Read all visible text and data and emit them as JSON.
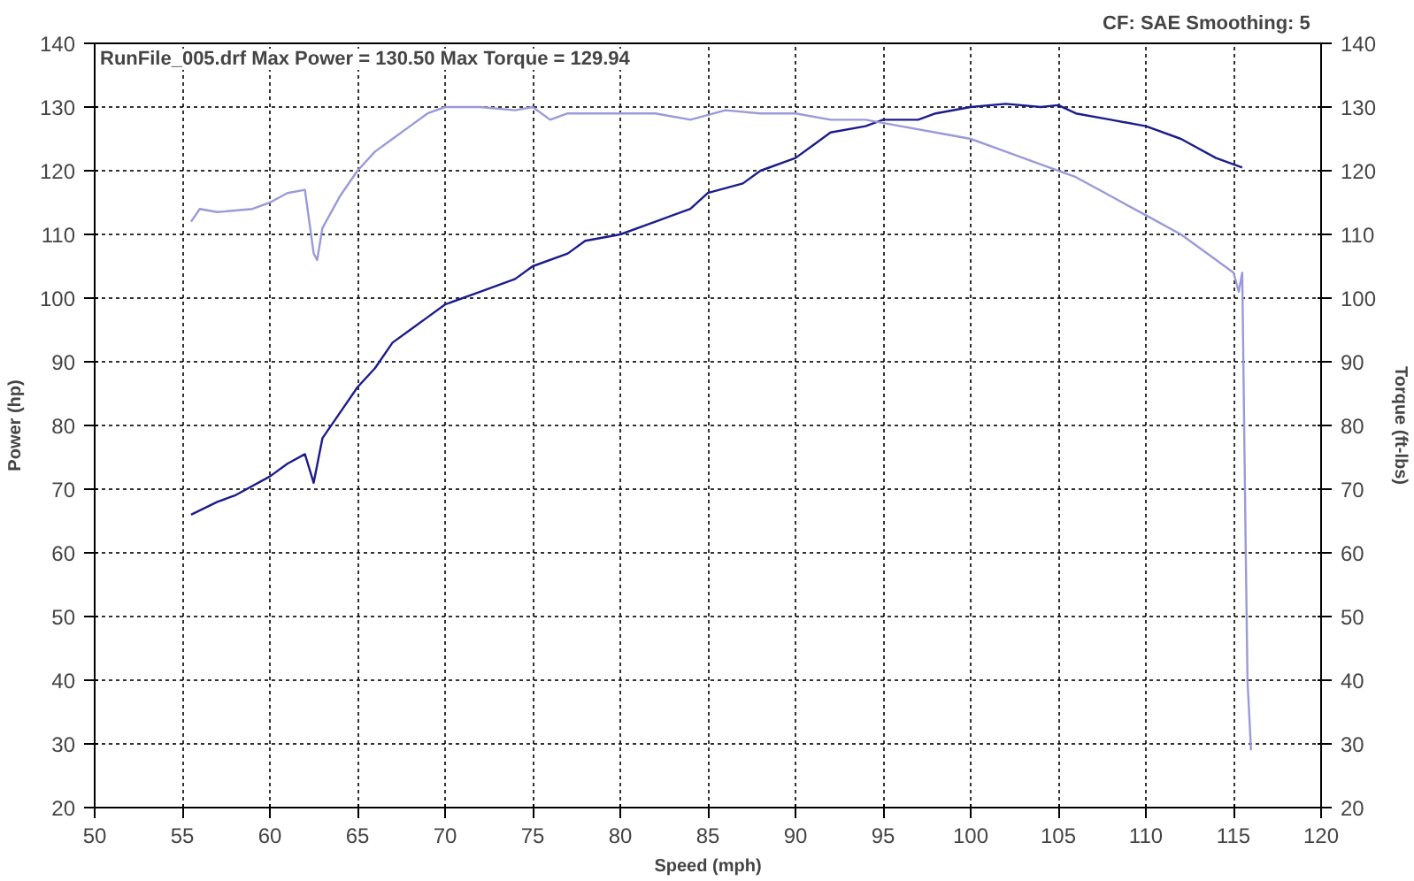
{
  "chart_data": {
    "type": "line",
    "xlabel": "Speed (mph)",
    "ylabel": "Power (hp)",
    "y2label": "Torque (ft-lbs)",
    "annotations": [
      "RunFile_005.drf Max Power = 130.50    Max Torque = 129.94",
      "CF: SAE   Smoothing: 5"
    ],
    "xlim": [
      50,
      120
    ],
    "xticks": [
      50,
      55,
      60,
      65,
      70,
      75,
      80,
      85,
      90,
      95,
      100,
      105,
      110,
      115,
      120
    ],
    "ylim": [
      20,
      140
    ],
    "yticks": [
      20,
      30,
      40,
      50,
      60,
      70,
      80,
      90,
      100,
      110,
      120,
      130,
      140
    ],
    "y2lim": [
      20,
      140
    ],
    "y2ticks": [
      20,
      30,
      40,
      50,
      60,
      70,
      80,
      90,
      100,
      110,
      120,
      130,
      140
    ],
    "grid": true,
    "line_style": "solid",
    "series": [
      {
        "color": "#1c1c8c",
        "x": [
          55.5,
          57,
          58,
          60,
          61,
          62,
          62.5,
          63,
          64,
          65,
          66,
          67,
          68,
          69,
          70,
          72,
          74,
          75,
          77,
          78,
          80,
          82,
          84,
          85,
          87,
          88,
          90,
          91,
          92,
          94,
          95,
          97,
          98,
          100,
          102,
          104,
          105,
          106,
          108,
          110,
          112,
          114,
          115.5
        ],
        "values": [
          66,
          68,
          69,
          72,
          74,
          75.5,
          71,
          78,
          82,
          86,
          89,
          93,
          95,
          97,
          99,
          101,
          103,
          105,
          107,
          109,
          110,
          112,
          114,
          116.5,
          118,
          120,
          122,
          124,
          126,
          127,
          128,
          128,
          129,
          130,
          130.5,
          130,
          130.3,
          129,
          128,
          127,
          125,
          122,
          120.5
        ]
      },
      {
        "color": "#9a9ad8",
        "x": [
          55.5,
          56,
          57,
          59,
          60,
          61,
          62,
          62.5,
          62.7,
          63,
          64,
          65,
          66,
          67,
          68,
          69,
          70,
          72,
          74,
          75,
          76,
          77,
          78,
          80,
          82,
          84,
          86,
          88,
          90,
          92,
          94,
          96,
          98,
          100,
          102,
          104,
          106,
          108,
          110,
          112,
          114,
          115,
          115.3,
          115.5,
          115.7,
          115.8,
          116
        ],
        "values": [
          112,
          114,
          113.5,
          114,
          115,
          116.5,
          117,
          107,
          106,
          111,
          116,
          120,
          123,
          125,
          127,
          129,
          130,
          130,
          129.5,
          130,
          128,
          129,
          129,
          129,
          129,
          128,
          129.5,
          129,
          129,
          128,
          128,
          127,
          126,
          125,
          123,
          121,
          119,
          116,
          113,
          110,
          106,
          104,
          101,
          104,
          60,
          40,
          29
        ]
      }
    ]
  }
}
